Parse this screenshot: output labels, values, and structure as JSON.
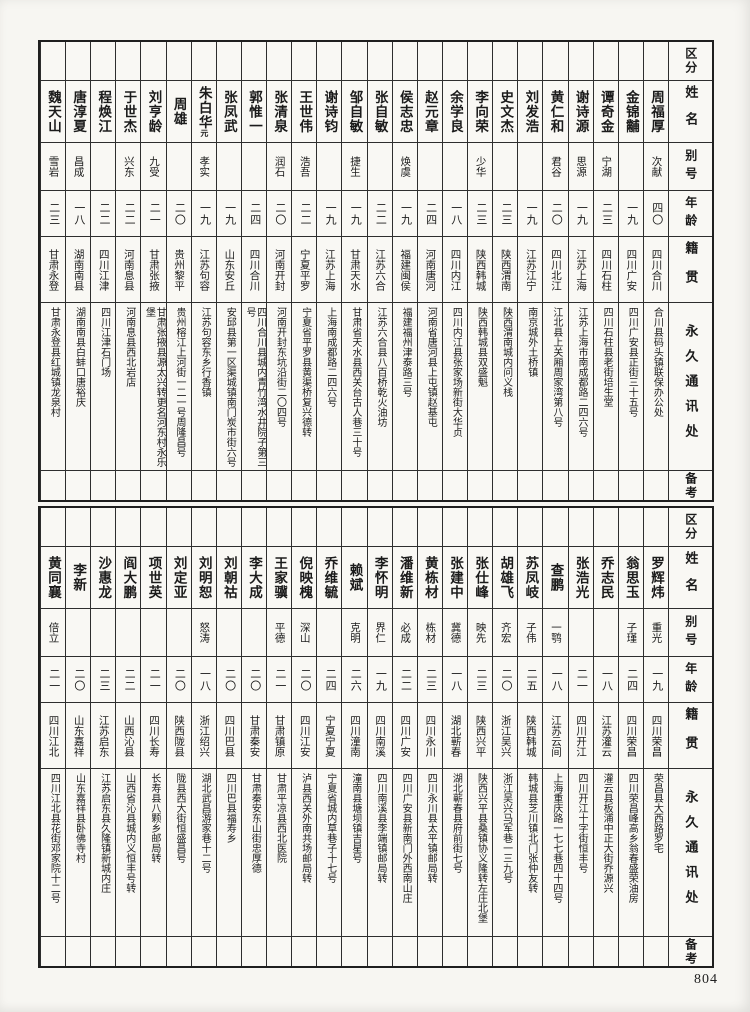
{
  "page": {
    "number": "804"
  },
  "header_labels": {
    "category": "区分",
    "name": "姓名",
    "byname": "别号",
    "age": "年龄",
    "origin": "籍贯",
    "address": "永久通讯处",
    "remarks": "备考"
  },
  "sections": [
    {
      "people": [
        {
          "name": "周福厚",
          "name_note": "",
          "byname": "次献",
          "age": "四〇",
          "origin": "四川合川",
          "address": "合川县码头镇联保办公处",
          "remarks": ""
        },
        {
          "name": "金锦黼",
          "name_note": "",
          "byname": "",
          "age": "一九",
          "origin": "四川广安",
          "address": "四川广安县正街三十五号",
          "remarks": ""
        },
        {
          "name": "谭奇金",
          "name_note": "",
          "byname": "宁湖",
          "age": "二三",
          "origin": "四川石柱",
          "address": "四川石柱县老街培生堂",
          "remarks": ""
        },
        {
          "name": "谢诗源",
          "name_note": "",
          "byname": "思源",
          "age": "一九",
          "origin": "江苏上海",
          "address": "江苏上海市南成都路二四六号",
          "remarks": ""
        },
        {
          "name": "黄仁和",
          "name_note": "",
          "byname": "君谷",
          "age": "二〇",
          "origin": "四川北江",
          "address": "江北县上关厢周家湾第八号",
          "remarks": ""
        },
        {
          "name": "刘发浩",
          "name_note": "",
          "byname": "",
          "age": "一九",
          "origin": "江苏江宁",
          "address": "南京城外土桥镇",
          "remarks": ""
        },
        {
          "name": "史文杰",
          "name_note": "",
          "byname": "",
          "age": "二三",
          "origin": "陕西渭南",
          "address": "陕西渭南城内问义栈",
          "remarks": ""
        },
        {
          "name": "李向荣",
          "name_note": "",
          "byname": "少华",
          "age": "二三",
          "origin": "陕西韩城",
          "address": "陕西韩城县双盛魁",
          "remarks": ""
        },
        {
          "name": "余学良",
          "name_note": "",
          "byname": "",
          "age": "一八",
          "origin": "四川内江",
          "address": "四川内江县张家场新街大华贞",
          "remarks": ""
        },
        {
          "name": "赵元章",
          "name_note": "",
          "byname": "",
          "age": "二四",
          "origin": "河南唐河",
          "address": "河南省唐河县上屯镇赵基屯",
          "remarks": ""
        },
        {
          "name": "侯志忠",
          "name_note": "",
          "byname": "焕虞",
          "age": "一九",
          "origin": "福建闽侯",
          "address": "福建福州津泰路三号",
          "remarks": ""
        },
        {
          "name": "张自敏",
          "name_note": "",
          "byname": "",
          "age": "二二",
          "origin": "江苏六合",
          "address": "江苏六合县八百桥乾火油坊",
          "remarks": ""
        },
        {
          "name": "邹自敏",
          "name_note": "",
          "byname": "捷生",
          "age": "一九",
          "origin": "甘肃天水",
          "address": "甘肃省天水县西关台古人巷三十号",
          "remarks": ""
        },
        {
          "name": "谢诗钧",
          "name_note": "",
          "byname": "",
          "age": "一九",
          "origin": "江苏上海",
          "address": "上海南成都路二四六号",
          "remarks": ""
        },
        {
          "name": "王世伟",
          "name_note": "",
          "byname": "浩吾",
          "age": "二二",
          "origin": "宁夏平罗",
          "address": "宁夏省平罗县黄渠桥复兴德转",
          "remarks": ""
        },
        {
          "name": "张清泉",
          "name_note": "",
          "byname": "润石",
          "age": "二〇",
          "origin": "河南开封",
          "address": "河南开封东坑沿街二〇四号",
          "remarks": ""
        },
        {
          "name": "郭惟一",
          "name_note": "",
          "byname": "",
          "age": "二四",
          "origin": "四川合川",
          "address": "四川合川县城内青竹湾水井院子第三号",
          "remarks": ""
        },
        {
          "name": "张凤武",
          "name_note": "",
          "byname": "",
          "age": "一九",
          "origin": "山东安丘",
          "address": "安邱县第一区渠城镇南门炭市街六号",
          "remarks": ""
        },
        {
          "name": "朱白华",
          "name_note": "元",
          "byname": "孝实",
          "age": "一九",
          "origin": "江苏句容",
          "address": "江苏句容东乡行香镇",
          "remarks": ""
        },
        {
          "name": "周雄",
          "name_note": "",
          "byname": "",
          "age": "二〇",
          "origin": "贵州黎平",
          "address": "贵州榕江上河街一二一号周隆昌号",
          "remarks": ""
        },
        {
          "name": "刘亨龄",
          "name_note": "",
          "byname": "九受",
          "age": "二一",
          "origin": "甘肃张掖",
          "address": "甘肃张掖县源太兴转更名河东村永乐堡",
          "remarks": ""
        },
        {
          "name": "于世杰",
          "name_note": "",
          "byname": "兴东",
          "age": "二二",
          "origin": "河南息县",
          "address": "河南息县西北岩店",
          "remarks": ""
        },
        {
          "name": "程焕江",
          "name_note": "",
          "byname": "",
          "age": "二二",
          "origin": "四川江津",
          "address": "四川江津石门场",
          "remarks": ""
        },
        {
          "name": "唐淳夏",
          "name_note": "",
          "byname": "昌成",
          "age": "一八",
          "origin": "湖南南县",
          "address": "湖南南县白蚌口唐裕庆",
          "remarks": ""
        },
        {
          "name": "魏天山",
          "name_note": "",
          "byname": "雪岩",
          "age": "二三",
          "origin": "甘肃永登",
          "address": "甘肃永登县红城镇龙泉村",
          "remarks": ""
        }
      ]
    },
    {
      "people": [
        {
          "name": "罗辉炜",
          "name_note": "",
          "byname": "重光",
          "age": "一九",
          "origin": "四川荣昌",
          "address": "荣昌县大西路罗宅",
          "remarks": ""
        },
        {
          "name": "翁思玉",
          "name_note": "",
          "byname": "子瑾",
          "age": "二四",
          "origin": "四川荣昌",
          "address": "四川荣昌峰高乡翁春盛荣油房",
          "remarks": ""
        },
        {
          "name": "乔志民",
          "name_note": "",
          "byname": "",
          "age": "一八",
          "origin": "江苏灌云",
          "address": "灌云县板浦中正大街乔源兴",
          "remarks": ""
        },
        {
          "name": "张浩光",
          "name_note": "",
          "byname": "",
          "age": "二一",
          "origin": "四川开江",
          "address": "四川开江十字街恒丰号",
          "remarks": ""
        },
        {
          "name": "查鹏",
          "name_note": "",
          "byname": "一鹗",
          "age": "一八",
          "origin": "江苏云间",
          "address": "上海重庆路一七七巷四十四号",
          "remarks": ""
        },
        {
          "name": "苏凤岐",
          "name_note": "",
          "byname": "子伟",
          "age": "二五",
          "origin": "陕西韩城",
          "address": "韩城县芝川镇北门张仲友转",
          "remarks": ""
        },
        {
          "name": "胡雄飞",
          "name_note": "",
          "byname": "齐宏",
          "age": "二〇",
          "origin": "浙江吴兴",
          "address": "浙江吴兴马军巷一三九号",
          "remarks": ""
        },
        {
          "name": "张仕峰",
          "name_note": "",
          "byname": "映先",
          "age": "二三",
          "origin": "陕西兴平",
          "address": "陕西兴平县桑镇协义隆转左庄北堡",
          "remarks": ""
        },
        {
          "name": "张建中",
          "name_note": "",
          "byname": "冀德",
          "age": "一八",
          "origin": "湖北蕲春",
          "address": "湖北蕲春县府前街七号",
          "remarks": ""
        },
        {
          "name": "黄栋材",
          "name_note": "",
          "byname": "栋材",
          "age": "二三",
          "origin": "四川永川",
          "address": "四川永川县太平镇邮局转",
          "remarks": ""
        },
        {
          "name": "潘维新",
          "name_note": "",
          "byname": "必成",
          "age": "二二",
          "origin": "四川广安",
          "address": "四川广安县新南门外西南山庄",
          "remarks": ""
        },
        {
          "name": "李怀明",
          "name_note": "",
          "byname": "界仁",
          "age": "一九",
          "origin": "四川南溪",
          "address": "四川南溪县李端镇邮局转",
          "remarks": ""
        },
        {
          "name": "赖斌",
          "name_note": "",
          "byname": "克明",
          "age": "二六",
          "origin": "四川潼南",
          "address": "潼南县塘坝镇吉星号",
          "remarks": ""
        },
        {
          "name": "乔维毓",
          "name_note": "",
          "byname": "",
          "age": "二四",
          "origin": "宁夏宁夏",
          "address": "宁夏省城内草巷子十七号",
          "remarks": ""
        },
        {
          "name": "倪映槐",
          "name_note": "",
          "byname": "深山",
          "age": "二〇",
          "origin": "四川江安",
          "address": "泸县西关外南共场邮局转",
          "remarks": ""
        },
        {
          "name": "王家骥",
          "name_note": "",
          "byname": "平德",
          "age": "二一",
          "origin": "甘肃镇原",
          "address": "甘肃平凉县西北医院",
          "remarks": ""
        },
        {
          "name": "李大成",
          "name_note": "",
          "byname": "",
          "age": "二〇",
          "origin": "甘肃秦安",
          "address": "甘肃秦安东山街忠厚德",
          "remarks": ""
        },
        {
          "name": "刘朝祜",
          "name_note": "",
          "byname": "",
          "age": "二〇",
          "origin": "四川巴县",
          "address": "四川巴县福寿乡",
          "remarks": ""
        },
        {
          "name": "刘明恕",
          "name_note": "",
          "byname": "怒涛",
          "age": "一八",
          "origin": "浙江绍兴",
          "address": "湖北武昌游家巷十二号",
          "remarks": ""
        },
        {
          "name": "刘定亚",
          "name_note": "",
          "byname": "",
          "age": "二〇",
          "origin": "陕西陇县",
          "address": "陇县西大街恒盛昌号",
          "remarks": ""
        },
        {
          "name": "项世英",
          "name_note": "",
          "byname": "",
          "age": "二一",
          "origin": "四川长寿",
          "address": "长寿县八颗乡邮局转",
          "remarks": ""
        },
        {
          "name": "阎大鹏",
          "name_note": "",
          "byname": "",
          "age": "二二",
          "origin": "山西沁县",
          "address": "山西省沁县城内义恒丰号转",
          "remarks": ""
        },
        {
          "name": "沙惠龙",
          "name_note": "",
          "byname": "",
          "age": "二三",
          "origin": "江苏启东",
          "address": "江苏启东县久隆镇新城内庄",
          "remarks": ""
        },
        {
          "name": "李新",
          "name_note": "",
          "byname": "",
          "age": "二〇",
          "origin": "山东嘉祥",
          "address": "山东嘉祥县卧佛寺村",
          "remarks": ""
        },
        {
          "name": "黄同襄",
          "name_note": "",
          "byname": "倍立",
          "age": "二一",
          "origin": "四川江北",
          "address": "四川江北县花街邓家院十二号",
          "remarks": ""
        }
      ]
    }
  ]
}
